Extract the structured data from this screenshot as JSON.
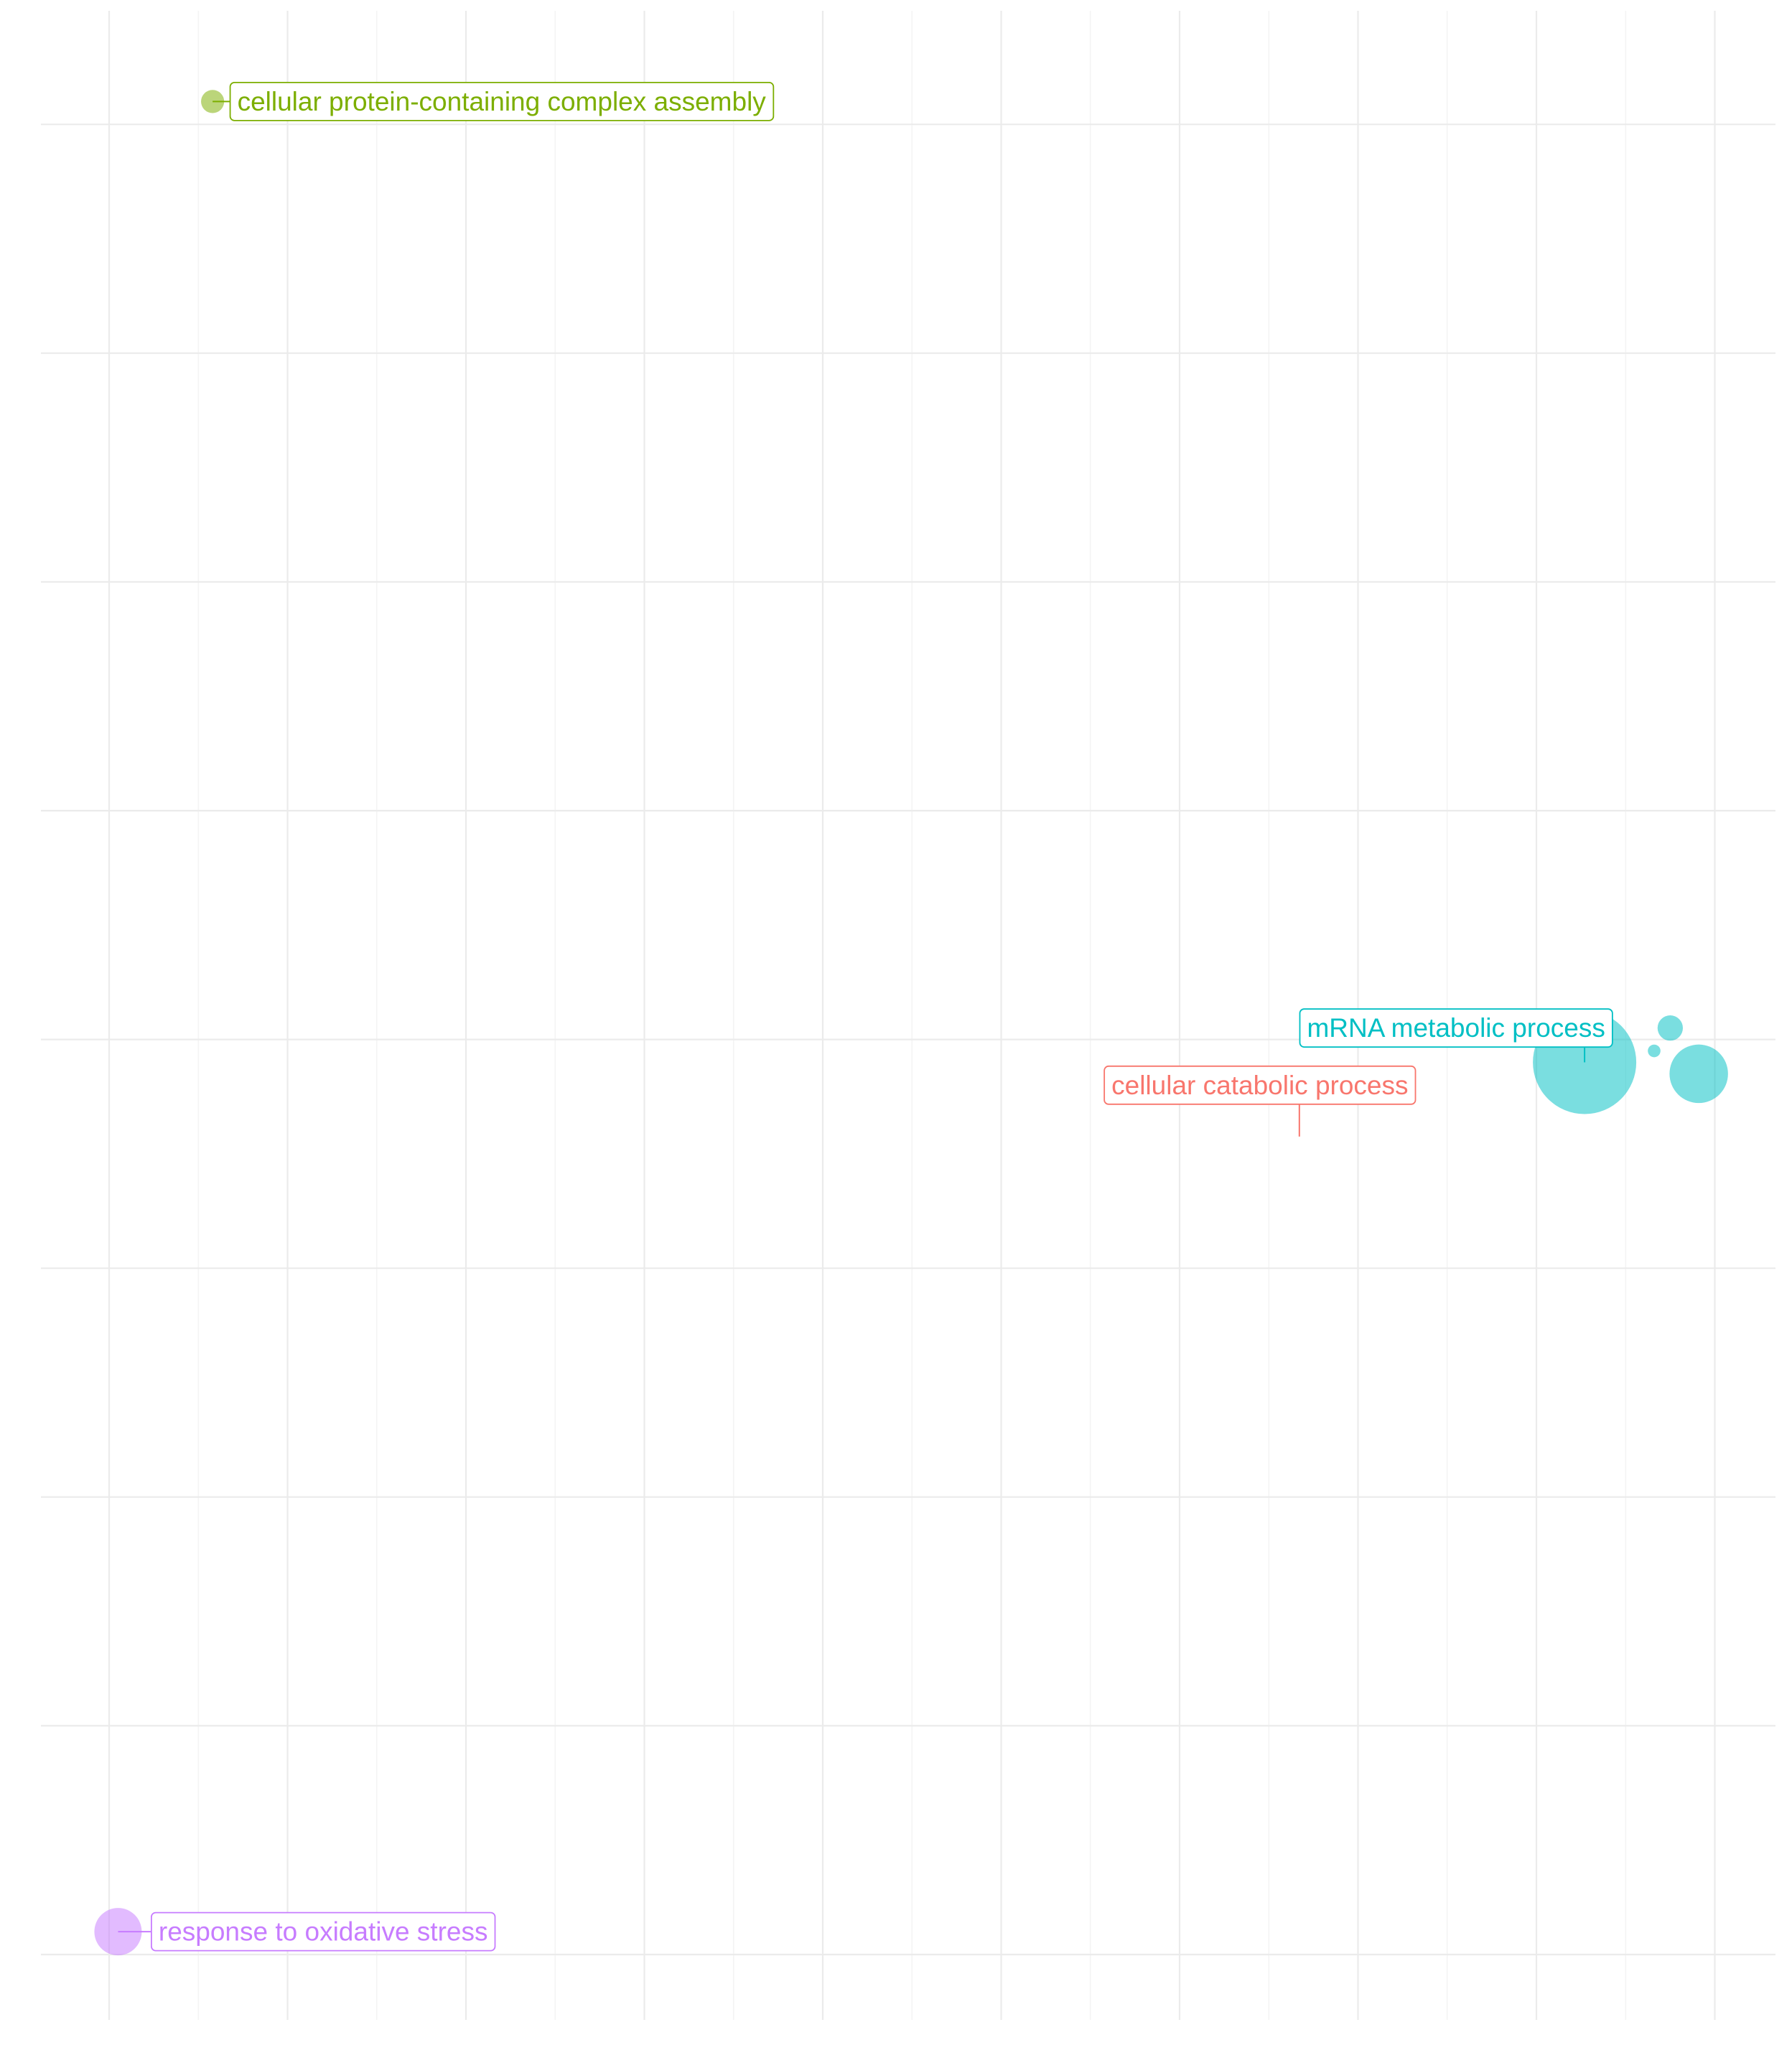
{
  "chart_data": {
    "type": "scatter",
    "title": "",
    "xlabel": "",
    "ylabel": "",
    "grid": true,
    "xlim": [
      0,
      10
    ],
    "ylim": [
      0,
      8.8
    ],
    "x_major_ticks": [
      0,
      1,
      2,
      3,
      4,
      5,
      6,
      7,
      8,
      9
    ],
    "y_major_ticks": [
      0,
      1,
      2,
      3,
      4,
      5,
      6,
      7,
      8
    ],
    "points": [
      {
        "x": 8.27,
        "y": 3.9,
        "size": 1.0,
        "color": "#00BFC4",
        "cluster": "mRNA metabolic process"
      },
      {
        "x": 8.91,
        "y": 3.85,
        "size": 0.32,
        "color": "#00BFC4",
        "cluster": "mRNA metabolic process"
      },
      {
        "x": 8.75,
        "y": 4.05,
        "size": 0.06,
        "color": "#00BFC4",
        "cluster": "mRNA metabolic process"
      },
      {
        "x": 8.66,
        "y": 3.95,
        "size": 0.015,
        "color": "#00BFC4",
        "cluster": "mRNA metabolic process"
      },
      {
        "x": 0.58,
        "y": 8.1,
        "size": 0.05,
        "color": "#7CAE00",
        "cluster": "cellular protein-containing complex assembly"
      },
      {
        "x": 0.05,
        "y": 0.1,
        "size": 0.21,
        "color": "#C77CFF",
        "cluster": "response to oxidative stress"
      }
    ],
    "annotations": [
      {
        "text": "cellular protein-containing complex assembly",
        "color": "#7CAE00",
        "x": 2.2,
        "y": 8.1
      },
      {
        "text": "cellular catabolic process",
        "color": "#F8766D",
        "x": 6.45,
        "y": 3.8
      },
      {
        "text": "mRNA metabolic process",
        "color": "#00BFC4",
        "x": 7.55,
        "y": 4.05
      },
      {
        "text": "response to oxidative stress",
        "color": "#C77CFF",
        "x": 1.2,
        "y": 0.1
      }
    ]
  }
}
